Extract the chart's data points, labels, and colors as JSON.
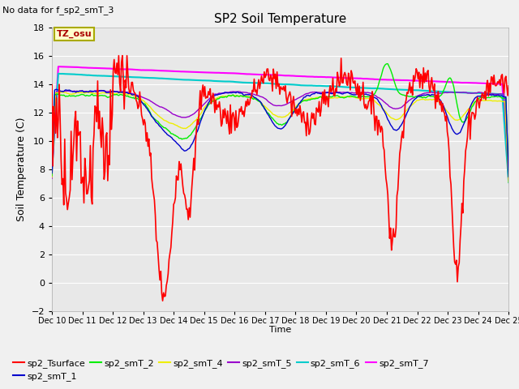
{
  "title": "SP2 Soil Temperature",
  "no_data_label": "No data for f_sp2_smT_3",
  "tz_label": "TZ_osu",
  "ylabel": "Soil Temperature (C)",
  "xlabel": "Time",
  "xlabels": [
    "Dec 10",
    "Dec 11",
    "Dec 12",
    "Dec 13",
    "Dec 14",
    "Dec 15",
    "Dec 16",
    "Dec 17",
    "Dec 18",
    "Dec 19",
    "Dec 20",
    "Dec 21",
    "Dec 22",
    "Dec 23",
    "Dec 24",
    "Dec 25"
  ],
  "ylim": [
    -2,
    18
  ],
  "yticks": [
    -2,
    0,
    2,
    4,
    6,
    8,
    10,
    12,
    14,
    16,
    18
  ],
  "series_colors": {
    "sp2_Tsurface": "#ff0000",
    "sp2_smT_1": "#0000cc",
    "sp2_smT_2": "#00ee00",
    "sp2_smT_4": "#eeee00",
    "sp2_smT_5": "#9900cc",
    "sp2_smT_6": "#00cccc",
    "sp2_smT_7": "#ff00ff"
  },
  "background_color": "#f0f0f0",
  "plot_bg_color": "#e8e8e8",
  "n_points": 500
}
